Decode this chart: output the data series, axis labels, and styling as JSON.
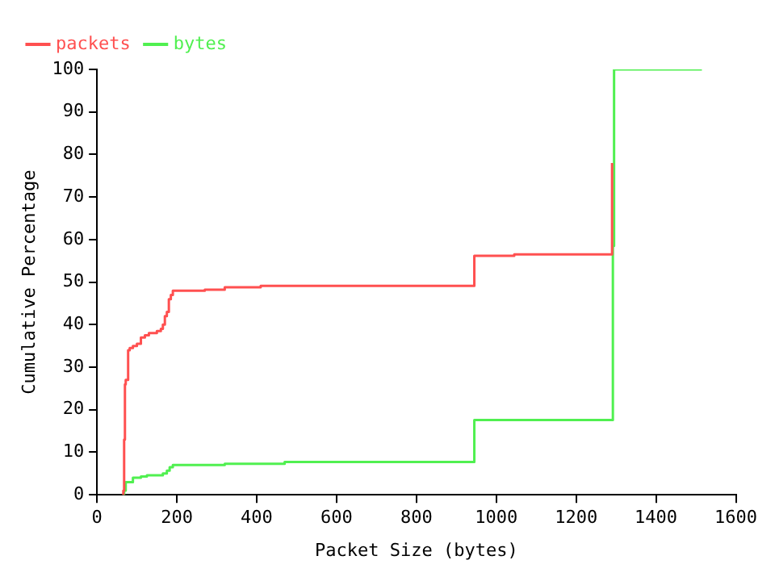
{
  "chart_data": {
    "type": "step",
    "xlabel": "Packet Size (bytes)",
    "ylabel": "Cumulative Percentage",
    "xlim": [
      0,
      1600
    ],
    "xticks": [
      0,
      200,
      400,
      600,
      800,
      1000,
      1200,
      1400,
      1600
    ],
    "ylim": [
      0,
      100
    ],
    "yticks": [
      0,
      10,
      20,
      30,
      40,
      50,
      60,
      70,
      80,
      90,
      100
    ],
    "grid": false,
    "legend": "top left",
    "marker": "none",
    "line_style": "solid",
    "series": [
      {
        "name": "packets",
        "color": "#ff5050",
        "x": [
          64,
          66,
          68,
          70,
          72,
          78,
          82,
          90,
          100,
          110,
          120,
          130,
          150,
          160,
          165,
          170,
          175,
          180,
          185,
          190,
          270,
          320,
          410,
          945,
          1045,
          1290
        ],
        "values": [
          0,
          1,
          13,
          26,
          27,
          34,
          34.5,
          35,
          35.5,
          37,
          37.5,
          38,
          38.5,
          39,
          40,
          42,
          43,
          46,
          47,
          48,
          48.2,
          48.8,
          49.1,
          56.2,
          56.5,
          78
        ]
      },
      {
        "name": "bytes",
        "color": "#50f050",
        "x": [
          64,
          68,
          72,
          80,
          90,
          110,
          125,
          160,
          165,
          175,
          182,
          190,
          320,
          470,
          945,
          1292,
          1295,
          1515
        ],
        "values": [
          0,
          1,
          3,
          3,
          4,
          4.3,
          4.6,
          4.6,
          5,
          5.7,
          6.5,
          7,
          7.3,
          7.7,
          17.6,
          58.5,
          100,
          100
        ]
      }
    ]
  }
}
